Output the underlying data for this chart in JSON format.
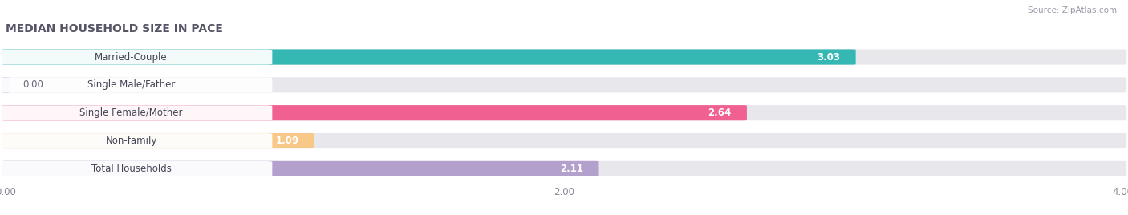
{
  "title": "MEDIAN HOUSEHOLD SIZE IN PACE",
  "source": "Source: ZipAtlas.com",
  "categories": [
    "Married-Couple",
    "Single Male/Father",
    "Single Female/Mother",
    "Non-family",
    "Total Households"
  ],
  "values": [
    3.03,
    0.0,
    2.64,
    1.09,
    2.11
  ],
  "colors": [
    "#35b8b4",
    "#a0b4e0",
    "#f06090",
    "#f8c888",
    "#b4a0cc"
  ],
  "xlim": [
    0,
    4.0
  ],
  "xticks": [
    0.0,
    2.0,
    4.0
  ],
  "xtick_labels": [
    "0.00",
    "2.00",
    "4.00"
  ],
  "bar_height": 0.52,
  "background_color": "#ffffff",
  "bar_background_color": "#e8e8ec",
  "label_fontsize": 8.5,
  "value_fontsize": 8.5,
  "title_fontsize": 10,
  "source_fontsize": 7.5
}
